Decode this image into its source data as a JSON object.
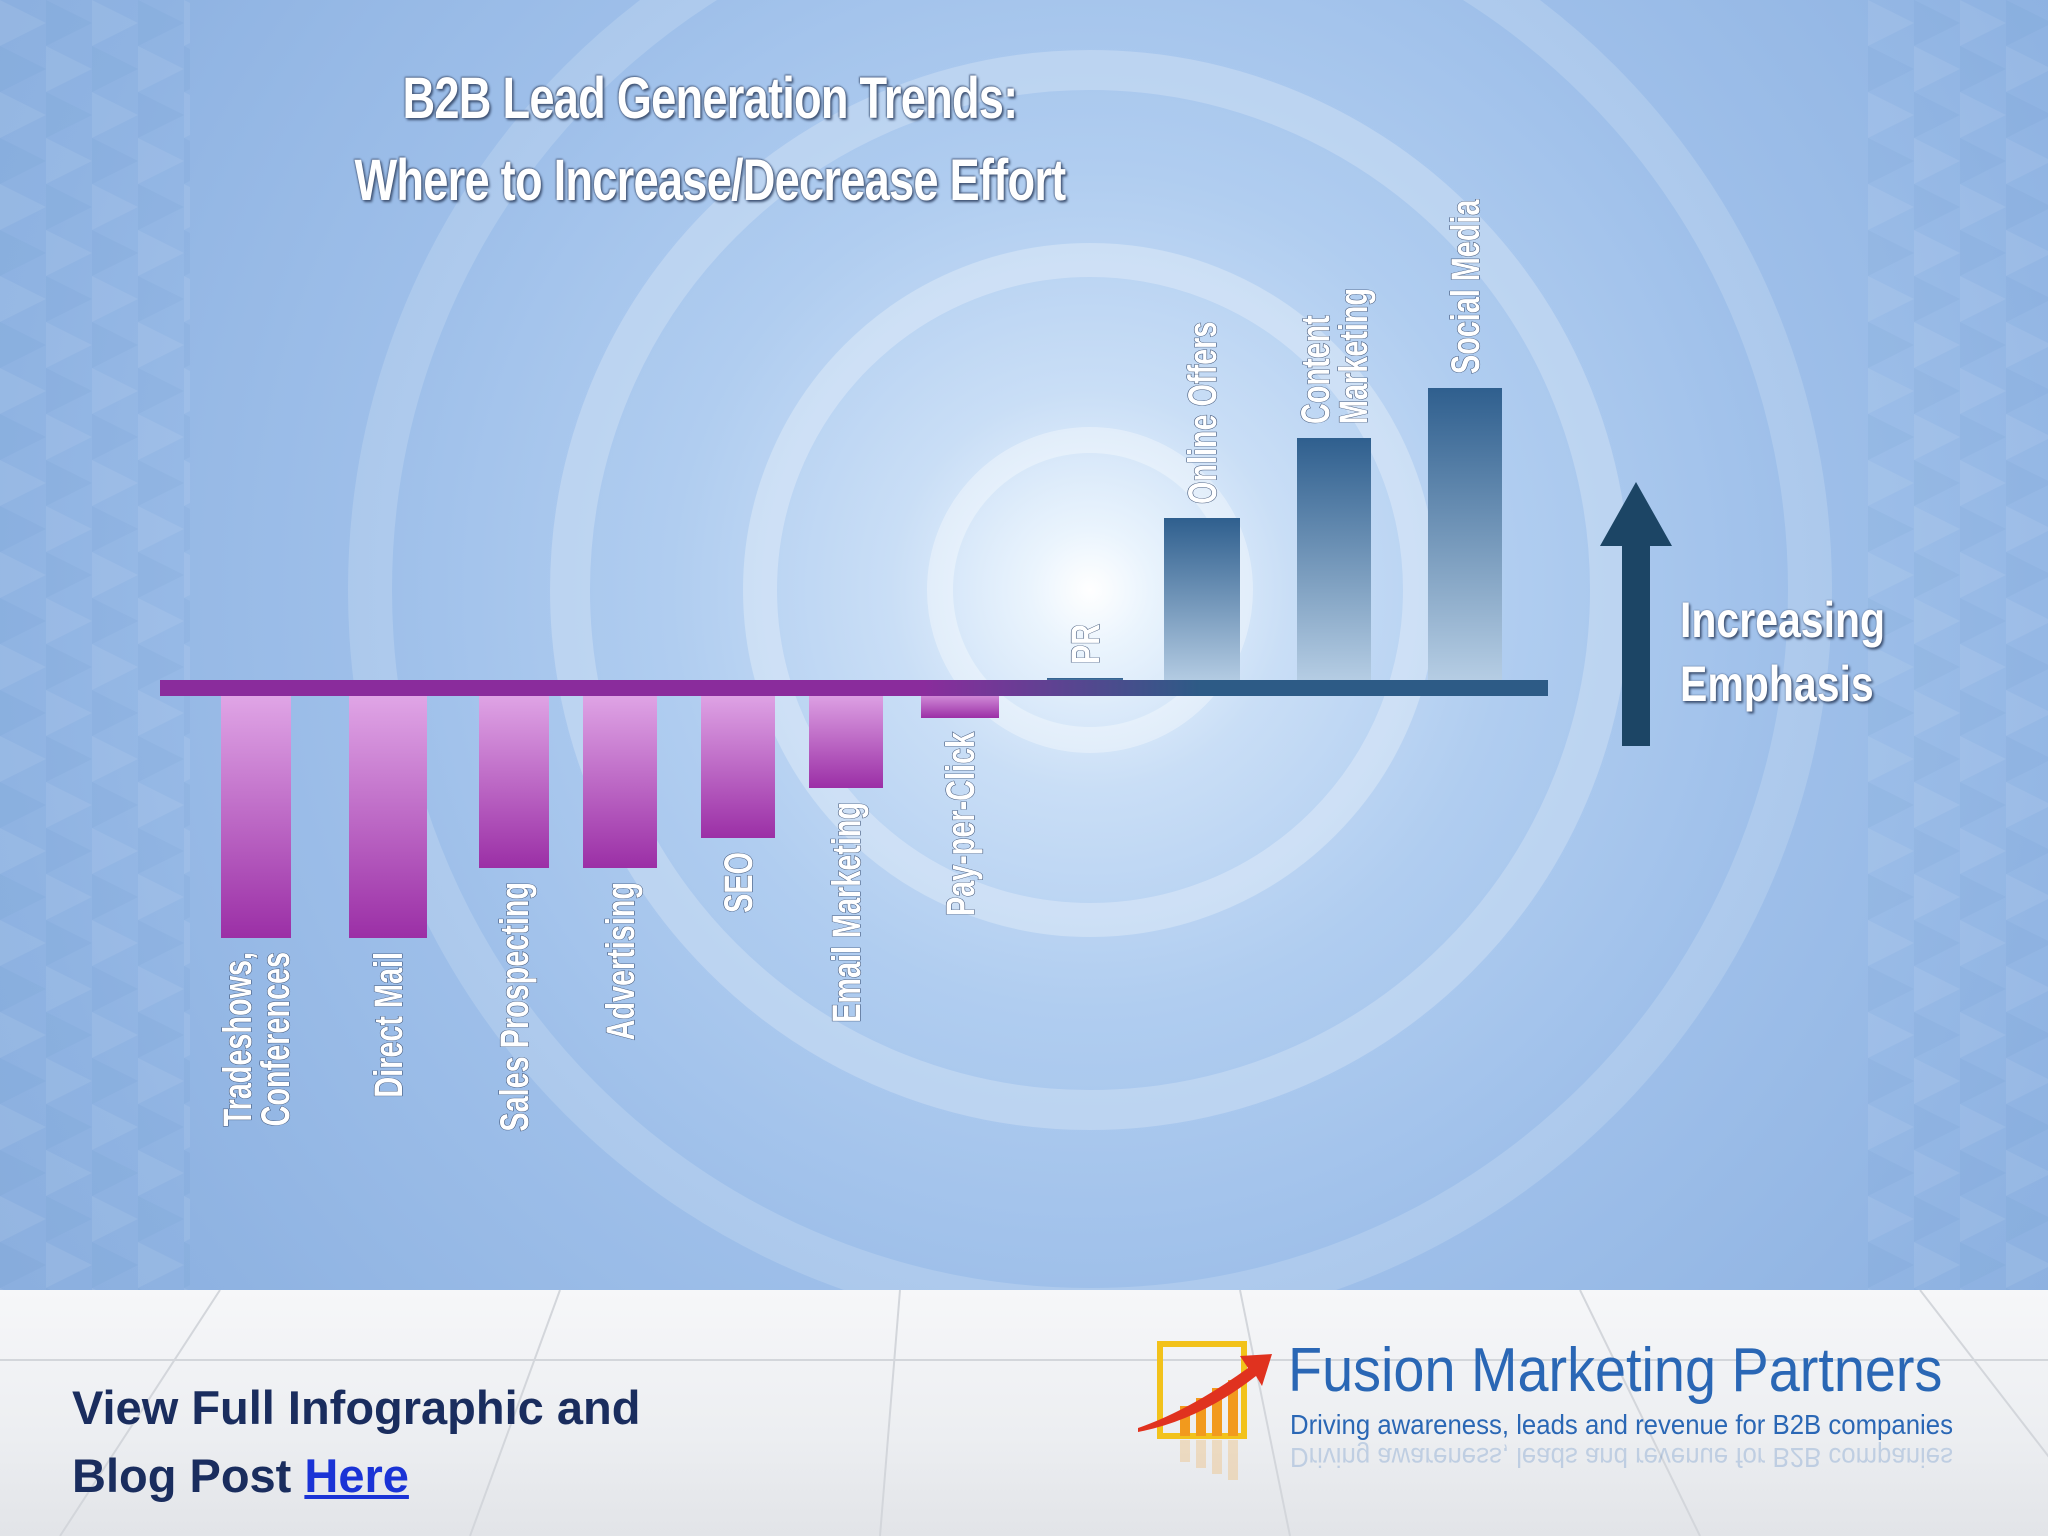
{
  "chart_data": {
    "type": "bar",
    "title": "B2B Lead Generation Trends:",
    "subtitle": "Where to Increase/Decrease Effort",
    "categories": [
      "Tradeshows, Conferences",
      "Direct Mail",
      "Sales Prospecting",
      "Advertising",
      "SEO",
      "Email Marketing",
      "Pay-per-Click",
      "PR",
      "Online Offers",
      "Content Marketing",
      "Social Media"
    ],
    "tick_labels": [
      [
        "Tradeshows,",
        "Conferences"
      ],
      [
        "Direct Mail"
      ],
      [
        "Sales Prospecting"
      ],
      [
        "Advertising"
      ],
      [
        "SEO"
      ],
      [
        "Email Marketing"
      ],
      [
        "Pay-per-Click"
      ],
      [
        "PR"
      ],
      [
        "Online Offers"
      ],
      [
        "Content",
        "Marketing"
      ],
      [
        "Social Media"
      ]
    ],
    "values": [
      -25,
      -25,
      -18,
      -18,
      -15,
      -10,
      -3,
      1,
      17,
      25,
      30
    ],
    "ylim": [
      -30,
      32
    ],
    "xlabel": "",
    "ylabel": "",
    "grid": false,
    "annotation": {
      "line1": "Increasing",
      "line2": "Emphasis"
    },
    "colors": {
      "negative": "#9b2fa6",
      "negative_light": "#e2a9e8",
      "positive": "#2f5f8e",
      "positive_light": "#b9d0e6",
      "axis_negative": "#8a2c9c",
      "axis_positive": "#2d5b86",
      "arrow": "#1c4565"
    }
  },
  "footer": {
    "cta_line1": "View Full Infographic and",
    "cta_line2_text": "Blog Post ",
    "cta_link": "Here"
  },
  "brand": {
    "name": "Fusion Marketing Partners",
    "tagline": "Driving awareness, leads and revenue for B2B companies"
  }
}
